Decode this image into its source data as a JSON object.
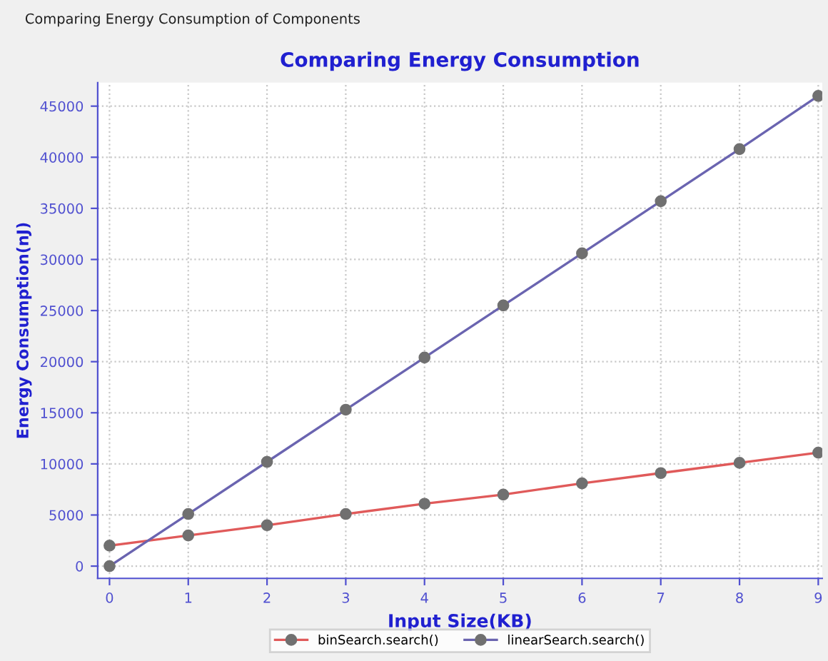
{
  "chart_data": {
    "type": "line",
    "title": "Comparing Energy Consumption",
    "xlabel": "Input Size(KB)",
    "ylabel": "Energy Consumption(nJ)",
    "annotations": [
      "Comparing Energy Consumption of Components"
    ],
    "x": [
      0,
      1,
      2,
      3,
      4,
      5,
      6,
      7,
      8,
      9
    ],
    "series": [
      {
        "name": "binSearch.search()",
        "color": "#e05a5a",
        "values": [
          2000,
          3000,
          4000,
          5100,
          6100,
          7000,
          8100,
          9100,
          10100,
          11100
        ]
      },
      {
        "name": "linearSearch.search()",
        "color": "#6a64b0",
        "values": [
          0,
          5100,
          10200,
          15300,
          20400,
          25500,
          30600,
          35700,
          40800,
          46000
        ]
      }
    ],
    "xlim": [
      -0.15,
      9.05
    ],
    "ylim": [
      -1200,
      47300
    ],
    "xticks": [
      0,
      1,
      2,
      3,
      4,
      5,
      6,
      7,
      8,
      9
    ],
    "yticks": [
      0,
      5000,
      10000,
      15000,
      20000,
      25000,
      30000,
      35000,
      40000,
      45000
    ],
    "grid": true,
    "legend": "bottom",
    "marker": "circle",
    "line_style": "solid"
  }
}
